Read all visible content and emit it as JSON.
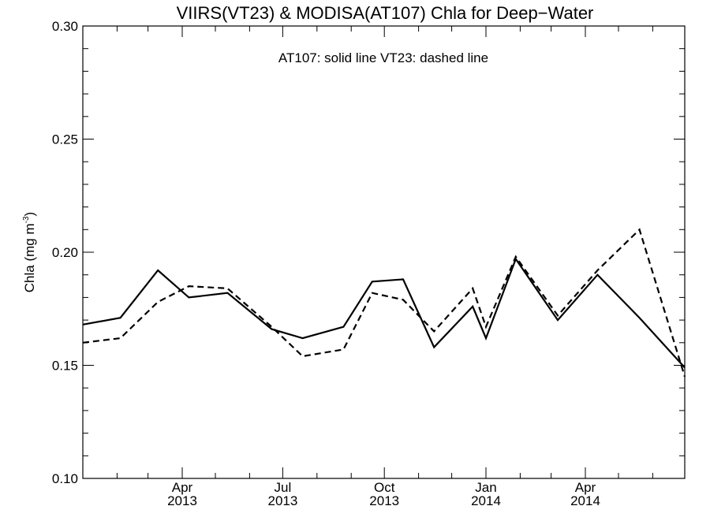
{
  "chart_data": {
    "type": "line",
    "title": "VIIRS(VT23) & MODISA(AT107)  Chla for Deep−Water",
    "annotation": "AT107: solid line   VT23: dashed line",
    "ylabel": {
      "main": "Chla (mg m",
      "superscript": "-3",
      "close": ")"
    },
    "xlabel": "",
    "ylim": [
      0.1,
      0.3
    ],
    "xlim": [
      "2013-01-01",
      "2014-06-30"
    ],
    "y_ticks": [
      "0.10",
      "0.15",
      "0.20",
      "0.25",
      "0.30"
    ],
    "x_tick_labels": [
      {
        "month": "Apr",
        "year": "2013",
        "date": "2013-04-01"
      },
      {
        "month": "Jul",
        "year": "2013",
        "date": "2013-07-01"
      },
      {
        "month": "Oct",
        "year": "2013",
        "date": "2013-10-01"
      },
      {
        "month": "Jan",
        "year": "2014",
        "date": "2014-01-01"
      },
      {
        "month": "Apr",
        "year": "2014",
        "date": "2014-04-01"
      }
    ],
    "x_minor_ticks": [
      "2013-02-01",
      "2013-03-01",
      "2013-05-01",
      "2013-06-01",
      "2013-08-01",
      "2013-09-01",
      "2013-11-01",
      "2013-12-01",
      "2014-02-01",
      "2014-03-01",
      "2014-05-01",
      "2014-06-01"
    ],
    "legend_placement": "top-center",
    "grid": false,
    "series": [
      {
        "name": "AT107",
        "style": "solid",
        "color": "#000000",
        "points": [
          {
            "x": "2013-01-01",
            "y": 0.168
          },
          {
            "x": "2013-02-04",
            "y": 0.171
          },
          {
            "x": "2013-03-10",
            "y": 0.192
          },
          {
            "x": "2013-04-07",
            "y": 0.18
          },
          {
            "x": "2013-05-12",
            "y": 0.182
          },
          {
            "x": "2013-06-21",
            "y": 0.166
          },
          {
            "x": "2013-07-19",
            "y": 0.162
          },
          {
            "x": "2013-08-25",
            "y": 0.167
          },
          {
            "x": "2013-09-20",
            "y": 0.187
          },
          {
            "x": "2013-10-18",
            "y": 0.188
          },
          {
            "x": "2013-11-15",
            "y": 0.158
          },
          {
            "x": "2013-12-20",
            "y": 0.176
          },
          {
            "x": "2014-01-01",
            "y": 0.162
          },
          {
            "x": "2014-01-28",
            "y": 0.197
          },
          {
            "x": "2014-03-07",
            "y": 0.17
          },
          {
            "x": "2014-04-12",
            "y": 0.19
          },
          {
            "x": "2014-05-20",
            "y": 0.171
          },
          {
            "x": "2014-06-30",
            "y": 0.149
          }
        ]
      },
      {
        "name": "VT23",
        "style": "dashed",
        "color": "#000000",
        "points": [
          {
            "x": "2013-01-01",
            "y": 0.16
          },
          {
            "x": "2013-02-04",
            "y": 0.162
          },
          {
            "x": "2013-03-10",
            "y": 0.178
          },
          {
            "x": "2013-04-07",
            "y": 0.185
          },
          {
            "x": "2013-05-12",
            "y": 0.184
          },
          {
            "x": "2013-06-21",
            "y": 0.167
          },
          {
            "x": "2013-07-19",
            "y": 0.154
          },
          {
            "x": "2013-08-25",
            "y": 0.157
          },
          {
            "x": "2013-09-20",
            "y": 0.182
          },
          {
            "x": "2013-10-18",
            "y": 0.179
          },
          {
            "x": "2013-11-15",
            "y": 0.165
          },
          {
            "x": "2013-12-20",
            "y": 0.184
          },
          {
            "x": "2014-01-01",
            "y": 0.167
          },
          {
            "x": "2014-01-28",
            "y": 0.198
          },
          {
            "x": "2014-03-07",
            "y": 0.172
          },
          {
            "x": "2014-04-12",
            "y": 0.192
          },
          {
            "x": "2014-05-20",
            "y": 0.21
          },
          {
            "x": "2014-06-30",
            "y": 0.145
          }
        ]
      }
    ]
  }
}
